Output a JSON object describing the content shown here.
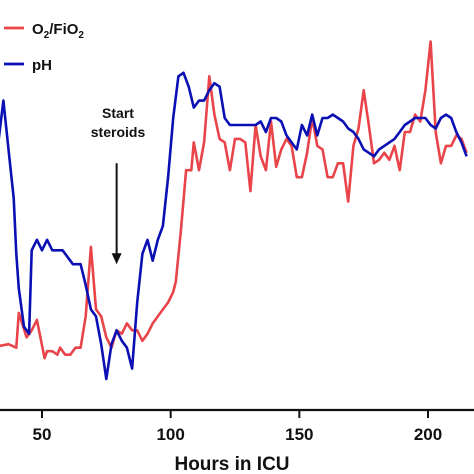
{
  "chart_data": {
    "type": "line",
    "title": "",
    "xlabel": "Hours in ICU",
    "ylabel": "",
    "xlim": [
      30,
      215
    ],
    "ylim": [
      0,
      100
    ],
    "x_ticks": [
      50,
      100,
      150,
      200
    ],
    "x_tick_labels": [
      "50",
      "100",
      "150",
      "200"
    ],
    "grid": false,
    "legend_position": "top-left",
    "annotation": {
      "lines": [
        "Start",
        "steroids"
      ],
      "x": 79,
      "arrow_from_y": 64,
      "arrow_to_y": 35
    },
    "series": [
      {
        "name": "O2/FiO2",
        "legend_main": "O",
        "legend_sub": "2",
        "legend_main2": "/FiO",
        "legend_sub2": "2",
        "color": "#e8444a",
        "points": [
          [
            30,
            11
          ],
          [
            37,
            12
          ],
          [
            40,
            11
          ],
          [
            41,
            21
          ],
          [
            44,
            14
          ],
          [
            46,
            16
          ],
          [
            48,
            19
          ],
          [
            51,
            8
          ],
          [
            52,
            10
          ],
          [
            54,
            10
          ],
          [
            56,
            9
          ],
          [
            57,
            11
          ],
          [
            59,
            9
          ],
          [
            61,
            9
          ],
          [
            63,
            11
          ],
          [
            65,
            11
          ],
          [
            67,
            20
          ],
          [
            69,
            40
          ],
          [
            71,
            22
          ],
          [
            73,
            20
          ],
          [
            75,
            14
          ],
          [
            77,
            11
          ],
          [
            79,
            16
          ],
          [
            81,
            15
          ],
          [
            83,
            18
          ],
          [
            85,
            16
          ],
          [
            87,
            16
          ],
          [
            89,
            13
          ],
          [
            91,
            15
          ],
          [
            93,
            18
          ],
          [
            95,
            20
          ],
          [
            97,
            22
          ],
          [
            99,
            24
          ],
          [
            101,
            27
          ],
          [
            102,
            30
          ],
          [
            104,
            45
          ],
          [
            106,
            62
          ],
          [
            108,
            62
          ],
          [
            109,
            70
          ],
          [
            111,
            62
          ],
          [
            113,
            70
          ],
          [
            115,
            89
          ],
          [
            117,
            78
          ],
          [
            119,
            71
          ],
          [
            121,
            70
          ],
          [
            123,
            62
          ],
          [
            125,
            71
          ],
          [
            127,
            71
          ],
          [
            129,
            70
          ],
          [
            131,
            56
          ],
          [
            133,
            75
          ],
          [
            135,
            66
          ],
          [
            137,
            62
          ],
          [
            139,
            76
          ],
          [
            141,
            63
          ],
          [
            143,
            68
          ],
          [
            145,
            71
          ],
          [
            147,
            69
          ],
          [
            149,
            60
          ],
          [
            151,
            60
          ],
          [
            153,
            67
          ],
          [
            155,
            77
          ],
          [
            157,
            69
          ],
          [
            159,
            68
          ],
          [
            161,
            60
          ],
          [
            163,
            60
          ],
          [
            165,
            64
          ],
          [
            167,
            64
          ],
          [
            169,
            53
          ],
          [
            171,
            69
          ],
          [
            173,
            74
          ],
          [
            175,
            85
          ],
          [
            177,
            75
          ],
          [
            179,
            64
          ],
          [
            181,
            65
          ],
          [
            183,
            67
          ],
          [
            185,
            65
          ],
          [
            187,
            69
          ],
          [
            189,
            62
          ],
          [
            191,
            73
          ],
          [
            193,
            73
          ],
          [
            195,
            78
          ],
          [
            197,
            76
          ],
          [
            199,
            85
          ],
          [
            201,
            99
          ],
          [
            203,
            73
          ],
          [
            205,
            64
          ],
          [
            207,
            69
          ],
          [
            209,
            69
          ],
          [
            211,
            72
          ],
          [
            213,
            71
          ],
          [
            215,
            67
          ]
        ]
      },
      {
        "name": "pH",
        "legend_main": "pH",
        "color": "#0b10b4",
        "points": [
          [
            30,
            65
          ],
          [
            33,
            70
          ],
          [
            35,
            82
          ],
          [
            37,
            68
          ],
          [
            39,
            54
          ],
          [
            40,
            38
          ],
          [
            41,
            28
          ],
          [
            43,
            17
          ],
          [
            45,
            15
          ],
          [
            46,
            39
          ],
          [
            48,
            42
          ],
          [
            50,
            39
          ],
          [
            52,
            42
          ],
          [
            54,
            39
          ],
          [
            56,
            39
          ],
          [
            58,
            39
          ],
          [
            60,
            37
          ],
          [
            62,
            35
          ],
          [
            64,
            35
          ],
          [
            65,
            35
          ],
          [
            67,
            29
          ],
          [
            69,
            22
          ],
          [
            71,
            20
          ],
          [
            73,
            12
          ],
          [
            75,
            2
          ],
          [
            77,
            12
          ],
          [
            79,
            16
          ],
          [
            81,
            13
          ],
          [
            83,
            11
          ],
          [
            85,
            5
          ],
          [
            87,
            24
          ],
          [
            89,
            38
          ],
          [
            91,
            42
          ],
          [
            93,
            36
          ],
          [
            95,
            42
          ],
          [
            97,
            46
          ],
          [
            99,
            60
          ],
          [
            101,
            77
          ],
          [
            103,
            89
          ],
          [
            105,
            90
          ],
          [
            107,
            86
          ],
          [
            109,
            80
          ],
          [
            111,
            82
          ],
          [
            113,
            82
          ],
          [
            115,
            85
          ],
          [
            117,
            87
          ],
          [
            119,
            86
          ],
          [
            121,
            77
          ],
          [
            123,
            75
          ],
          [
            125,
            75
          ],
          [
            127,
            75
          ],
          [
            129,
            75
          ],
          [
            131,
            75
          ],
          [
            133,
            75
          ],
          [
            135,
            76
          ],
          [
            137,
            73
          ],
          [
            139,
            77
          ],
          [
            141,
            77
          ],
          [
            143,
            76
          ],
          [
            145,
            72
          ],
          [
            147,
            70
          ],
          [
            149,
            68
          ],
          [
            151,
            75
          ],
          [
            153,
            72
          ],
          [
            155,
            78
          ],
          [
            157,
            72
          ],
          [
            159,
            77
          ],
          [
            161,
            77
          ],
          [
            163,
            78
          ],
          [
            165,
            77
          ],
          [
            167,
            76
          ],
          [
            169,
            74
          ],
          [
            171,
            73
          ],
          [
            173,
            71
          ],
          [
            175,
            68
          ],
          [
            177,
            67
          ],
          [
            179,
            66
          ],
          [
            181,
            68
          ],
          [
            183,
            69
          ],
          [
            185,
            70
          ],
          [
            187,
            71
          ],
          [
            189,
            73
          ],
          [
            191,
            75
          ],
          [
            193,
            76
          ],
          [
            195,
            77
          ],
          [
            197,
            77
          ],
          [
            199,
            77
          ],
          [
            201,
            75
          ],
          [
            203,
            74
          ],
          [
            205,
            77
          ],
          [
            207,
            78
          ],
          [
            209,
            77
          ],
          [
            211,
            73
          ],
          [
            213,
            70
          ],
          [
            215,
            66
          ]
        ]
      }
    ]
  }
}
